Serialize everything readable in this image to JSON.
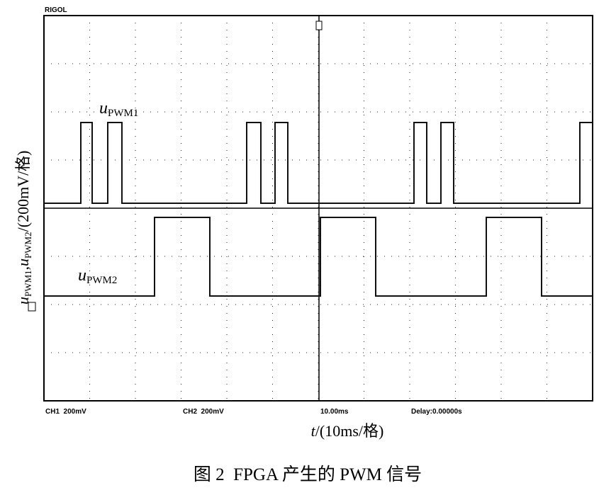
{
  "header": {
    "brand": "RIGOL"
  },
  "y_label": {
    "var1": "u",
    "sub1": "PWM1",
    "sep": ",",
    "var2": "u",
    "sub2": "PWM2",
    "unit": "/(200mV/格)"
  },
  "traces": [
    {
      "var": "u",
      "sub": "PWM1"
    },
    {
      "var": "u",
      "sub": "PWM2"
    }
  ],
  "status": [
    "CH1  200mV",
    "CH2  200mV",
    "10.00ms",
    "Delay:0.00000s"
  ],
  "x_label": {
    "var": "t",
    "unit": "/(10ms/格)"
  },
  "caption": "图 2  FPGA 产生的 PWM 信号"
}
